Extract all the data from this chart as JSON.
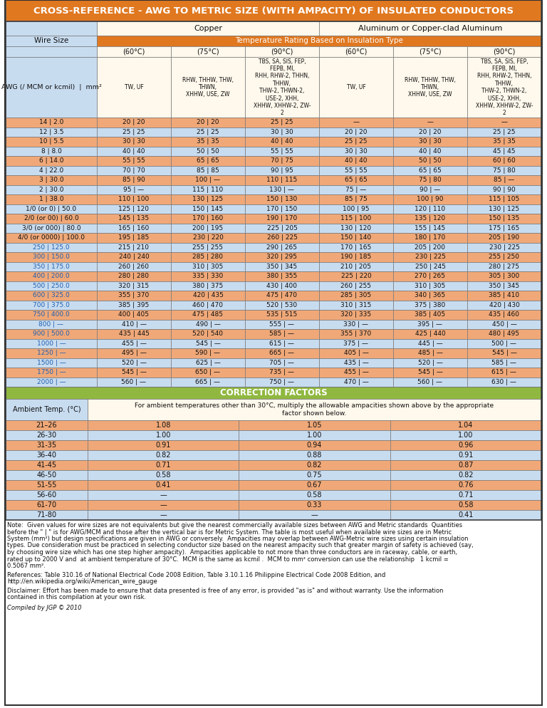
{
  "title": "CROSS-REFERENCE - AWG TO METRIC SIZE (WITH AMPACITY) OF INSULATED CONDUCTORS",
  "orange": "#E07820",
  "light_blue": "#C8DCF0",
  "cream": "#FFF8EC",
  "row_orange": "#F0A878",
  "row_blue": "#C8DCF0",
  "green": "#90B840",
  "dark": "#101010",
  "blue_text": "#2060B0",
  "white": "#FFFFFF",
  "wire_sizes": [
    "14 | 2.0",
    "12 | 3.5",
    "10 | 5.5",
    "8 | 8.0",
    "6 | 14.0",
    "4 | 22.0",
    "3 | 30.0",
    "2 | 30.0",
    "1 | 38.0",
    "1/0 (or 0) | 50.0",
    "2/0 (or 00) | 60.0",
    "3/0 (or 000) | 80.0",
    "4/0 (or 0000) | 100.0",
    "250 | 125.0",
    "300 | 150.0",
    "350 | 175.0",
    "400 | 200.0",
    "500 | 250.0",
    "600 | 325.0",
    "700 | 375.0",
    "750 | 400.0",
    "800 | —",
    "900 | 500.0",
    "1000 | —",
    "1250 | —",
    "1500 | —",
    "1750 | —",
    "2000 | —"
  ],
  "data": [
    [
      "20 | 20",
      "20 | 20",
      "25 | 25",
      "—",
      "—",
      "—"
    ],
    [
      "25 | 25",
      "25 | 25",
      "30 | 30",
      "20 | 20",
      "20 | 20",
      "25 | 25"
    ],
    [
      "30 | 30",
      "35 | 35",
      "40 | 40",
      "25 | 25",
      "30 | 30",
      "35 | 35"
    ],
    [
      "40 | 40",
      "50 | 50",
      "55 | 55",
      "30 | 30",
      "40 | 40",
      "45 | 45"
    ],
    [
      "55 | 55",
      "65 | 65",
      "70 | 75",
      "40 | 40",
      "50 | 50",
      "60 | 60"
    ],
    [
      "70 | 70",
      "85 | 85",
      "90 | 95",
      "55 | 55",
      "65 | 65",
      "75 | 80"
    ],
    [
      "85 | 90",
      "100 | —",
      "110 | 115",
      "65 | 65",
      "75 | 80",
      "85 | —"
    ],
    [
      "95 | —",
      "115 | 110",
      "130 | —",
      "75 | —",
      "90 | —",
      "90 | 90"
    ],
    [
      "110 | 100",
      "130 | 125",
      "150 | 130",
      "85 | 75",
      "100 | 90",
      "115 | 105"
    ],
    [
      "125 | 120",
      "150 | 145",
      "170 | 150",
      "100 | 95",
      "120 | 110",
      "130 | 125"
    ],
    [
      "145 | 135",
      "170 | 160",
      "190 | 170",
      "115 | 100",
      "135 | 120",
      "150 | 135"
    ],
    [
      "165 | 160",
      "200 | 195",
      "225 | 205",
      "130 | 120",
      "155 | 145",
      "175 | 165"
    ],
    [
      "195 | 185",
      "230 | 220",
      "260 | 225",
      "150 | 140",
      "180 | 170",
      "205 | 190"
    ],
    [
      "215 | 210",
      "255 | 255",
      "290 | 265",
      "170 | 165",
      "205 | 200",
      "230 | 225"
    ],
    [
      "240 | 240",
      "285 | 280",
      "320 | 295",
      "190 | 185",
      "230 | 225",
      "255 | 250"
    ],
    [
      "260 | 260",
      "310 | 305",
      "350 | 345",
      "210 | 205",
      "250 | 245",
      "280 | 275"
    ],
    [
      "280 | 280",
      "335 | 330",
      "380 | 355",
      "225 | 220",
      "270 | 265",
      "305 | 300"
    ],
    [
      "320 | 315",
      "380 | 375",
      "430 | 400",
      "260 | 255",
      "310 | 305",
      "350 | 345"
    ],
    [
      "355 | 370",
      "420 | 435",
      "475 | 470",
      "285 | 305",
      "340 | 365",
      "385 | 410"
    ],
    [
      "385 | 395",
      "460 | 470",
      "520 | 530",
      "310 | 315",
      "375 | 380",
      "420 | 430"
    ],
    [
      "400 | 405",
      "475 | 485",
      "535 | 515",
      "320 | 335",
      "385 | 405",
      "435 | 460"
    ],
    [
      "410 | —",
      "490 | —",
      "555 | —",
      "330 | —",
      "395 | —",
      "450 | —"
    ],
    [
      "435 | 445",
      "520 | 540",
      "585 | —",
      "355 | 370",
      "425 | 440",
      "480 | 495"
    ],
    [
      "455 | —",
      "545 | —",
      "615 | —",
      "375 | —",
      "445 | —",
      "500 | —"
    ],
    [
      "495 | —",
      "590 | —",
      "665 | —",
      "405 | —",
      "485 | —",
      "545 | —"
    ],
    [
      "520 | —",
      "625 | —",
      "705 | —",
      "435 | —",
      "520 | —",
      "585 | —"
    ],
    [
      "545 | —",
      "650 | —",
      "735 | —",
      "455 | —",
      "545 | —",
      "615 | —"
    ],
    [
      "560 | —",
      "665 | —",
      "750 | —",
      "470 | —",
      "560 | —",
      "630 | —"
    ]
  ],
  "correction_rows": [
    [
      "21–26",
      "1.08",
      "1.05",
      "1.04"
    ],
    [
      "26-30",
      "1.00",
      "1.00",
      "1.00"
    ],
    [
      "31-35",
      "0.91",
      "0.94",
      "0.96"
    ],
    [
      "36-40",
      "0.82",
      "0.88",
      "0.91"
    ],
    [
      "41-45",
      "0.71",
      "0.82",
      "0.87"
    ],
    [
      "46-50",
      "0.58",
      "0.75",
      "0.82"
    ],
    [
      "51-55",
      "0.41",
      "0.67",
      "0.76"
    ],
    [
      "56-60",
      "—",
      "0.58",
      "0.71"
    ],
    [
      "61-70",
      "—",
      "0.33",
      "0.58"
    ],
    [
      "71-80",
      "—",
      "—",
      "0.41"
    ]
  ]
}
